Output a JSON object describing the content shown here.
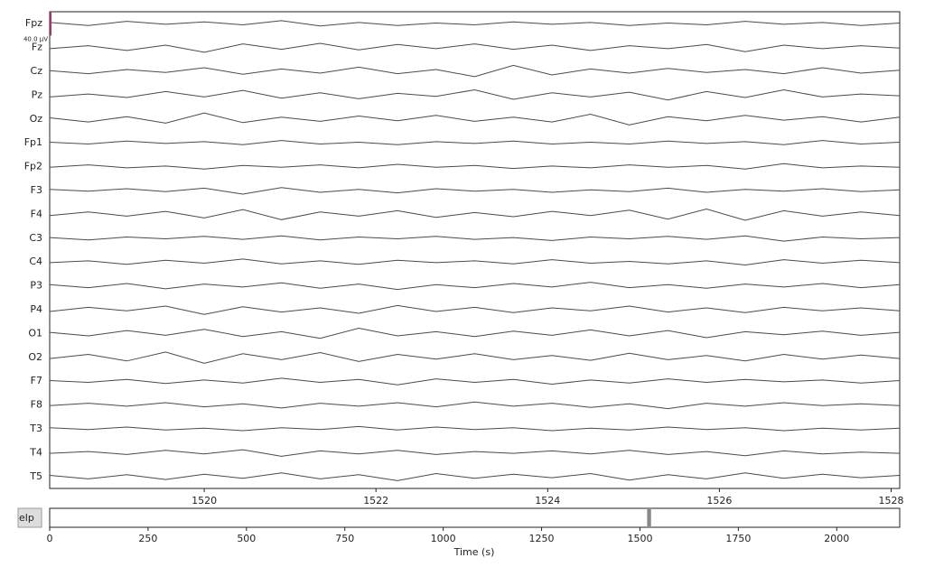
{
  "chart_data": [
    {
      "type": "eeg",
      "scale_bar": {
        "value": 40,
        "label": "40.0 µV"
      },
      "scale_color": "#b0306e",
      "line_color": "#4a4a4a",
      "xlim": [
        1518.2,
        1528.1
      ],
      "xticks": [
        1520,
        1522,
        1524,
        1526,
        1528
      ],
      "x": [
        1518.2,
        1518.65,
        1519.1,
        1519.55,
        1520,
        1520.45,
        1520.9,
        1521.35,
        1521.8,
        1522.25,
        1522.7,
        1523.15,
        1523.6,
        1524.05,
        1524.5,
        1524.95,
        1525.4,
        1525.85,
        1526.3,
        1526.75,
        1527.2,
        1527.65,
        1528.1
      ],
      "series": [
        {
          "name": "Fpz",
          "values": [
            2,
            -3,
            4,
            -1,
            3,
            -2,
            5,
            -4,
            2,
            -3,
            1,
            -2,
            3,
            -1,
            2,
            -3,
            1,
            -2,
            4,
            -1,
            2,
            -3,
            1
          ]
        },
        {
          "name": "Fz",
          "values": [
            -2,
            3,
            -5,
            4,
            -8,
            6,
            -3,
            7,
            -4,
            5,
            -2,
            6,
            -3,
            4,
            -5,
            3,
            -2,
            5,
            -7,
            4,
            -2,
            3,
            -1
          ]
        },
        {
          "name": "Cz",
          "values": [
            1,
            -4,
            3,
            -2,
            6,
            -5,
            4,
            -3,
            7,
            -4,
            3,
            -9,
            10,
            -6,
            4,
            -3,
            5,
            -2,
            3,
            -4,
            6,
            -3,
            2
          ]
        },
        {
          "name": "Pz",
          "values": [
            -3,
            2,
            -4,
            6,
            -3,
            8,
            -5,
            4,
            -6,
            3,
            -2,
            9,
            -7,
            4,
            -3,
            5,
            -8,
            6,
            -4,
            9,
            -3,
            2,
            -1
          ]
        },
        {
          "name": "Oz",
          "values": [
            2,
            -5,
            4,
            -7,
            10,
            -6,
            3,
            -4,
            5,
            -3,
            6,
            -4,
            3,
            -5,
            8,
            -10,
            4,
            -3,
            6,
            -2,
            4,
            -5,
            3
          ]
        },
        {
          "name": "Fp1",
          "values": [
            1,
            -2,
            3,
            -1,
            2,
            -3,
            4,
            -2,
            1,
            -3,
            2,
            -1,
            3,
            -2,
            1,
            -2,
            3,
            -1,
            2,
            -3,
            4,
            -2,
            1
          ]
        },
        {
          "name": "Fp2",
          "values": [
            -1,
            3,
            -2,
            1,
            -4,
            2,
            -1,
            3,
            -2,
            4,
            -1,
            2,
            -3,
            1,
            -2,
            3,
            -1,
            2,
            -4,
            5,
            -2,
            1,
            -1
          ]
        },
        {
          "name": "F3",
          "values": [
            2,
            -1,
            3,
            -2,
            4,
            -6,
            5,
            -3,
            2,
            -4,
            3,
            -1,
            2,
            -3,
            1,
            -2,
            4,
            -3,
            2,
            -1,
            3,
            -2,
            1
          ]
        },
        {
          "name": "F4",
          "values": [
            -2,
            4,
            -3,
            5,
            -6,
            8,
            -9,
            4,
            -3,
            6,
            -5,
            3,
            -4,
            5,
            -2,
            7,
            -8,
            9,
            -10,
            6,
            -3,
            4,
            -2
          ]
        },
        {
          "name": "C3",
          "values": [
            1,
            -3,
            2,
            -1,
            3,
            -2,
            4,
            -3,
            2,
            -1,
            3,
            -2,
            1,
            -4,
            2,
            -1,
            3,
            -2,
            4,
            -5,
            2,
            -1,
            1
          ]
        },
        {
          "name": "C4",
          "values": [
            -1,
            2,
            -4,
            3,
            -2,
            5,
            -3,
            2,
            -4,
            3,
            -1,
            2,
            -3,
            4,
            -2,
            1,
            -3,
            2,
            -5,
            4,
            -2,
            3,
            -1
          ]
        },
        {
          "name": "P3",
          "values": [
            2,
            -3,
            4,
            -5,
            3,
            -2,
            5,
            -4,
            3,
            -6,
            2,
            -3,
            4,
            -2,
            6,
            -3,
            2,
            -4,
            3,
            -2,
            4,
            -3,
            2
          ]
        },
        {
          "name": "P4",
          "values": [
            -3,
            4,
            -2,
            6,
            -8,
            5,
            -4,
            3,
            -6,
            7,
            -3,
            4,
            -5,
            3,
            -2,
            6,
            -4,
            3,
            -5,
            4,
            -2,
            3,
            -2
          ]
        },
        {
          "name": "O1",
          "values": [
            2,
            -4,
            5,
            -3,
            7,
            -5,
            3,
            -8,
            9,
            -4,
            3,
            -5,
            4,
            -3,
            6,
            -4,
            5,
            -7,
            3,
            -2,
            4,
            -3,
            2
          ]
        },
        {
          "name": "O2",
          "values": [
            -2,
            5,
            -6,
            9,
            -10,
            6,
            -4,
            8,
            -7,
            5,
            -3,
            6,
            -4,
            3,
            -5,
            7,
            -4,
            3,
            -6,
            5,
            -3,
            4,
            -2
          ]
        },
        {
          "name": "F7",
          "values": [
            1,
            -2,
            3,
            -4,
            2,
            -3,
            5,
            -2,
            3,
            -6,
            4,
            -2,
            3,
            -5,
            2,
            -3,
            4,
            -2,
            3,
            -1,
            2,
            -3,
            1
          ]
        },
        {
          "name": "F8",
          "values": [
            -1,
            3,
            -2,
            4,
            -3,
            2,
            -5,
            3,
            -2,
            4,
            -3,
            5,
            -2,
            3,
            -4,
            2,
            -6,
            3,
            -2,
            4,
            -1,
            2,
            -1
          ]
        },
        {
          "name": "T3",
          "values": [
            2,
            -1,
            3,
            -2,
            1,
            -3,
            2,
            -1,
            4,
            -2,
            3,
            -1,
            2,
            -3,
            1,
            -2,
            3,
            -1,
            2,
            -3,
            1,
            -2,
            1
          ]
        },
        {
          "name": "T4",
          "values": [
            -1,
            2,
            -3,
            4,
            -2,
            5,
            -6,
            3,
            -2,
            4,
            -3,
            2,
            -1,
            3,
            -2,
            4,
            -3,
            2,
            -5,
            3,
            -2,
            1,
            -1
          ]
        },
        {
          "name": "T5",
          "values": [
            2,
            -4,
            3,
            -5,
            4,
            -3,
            6,
            -4,
            3,
            -7,
            5,
            -3,
            4,
            -2,
            5,
            -6,
            3,
            -4,
            6,
            -3,
            4,
            -2,
            2
          ]
        }
      ]
    },
    {
      "type": "overview",
      "xlabel": "Time (s)",
      "xlim": [
        0,
        2160
      ],
      "xticks": [
        0,
        250,
        500,
        750,
        1000,
        1250,
        1500,
        1750,
        2000
      ],
      "window_color": "#888888"
    }
  ],
  "controls": {
    "help_button": "elp"
  }
}
